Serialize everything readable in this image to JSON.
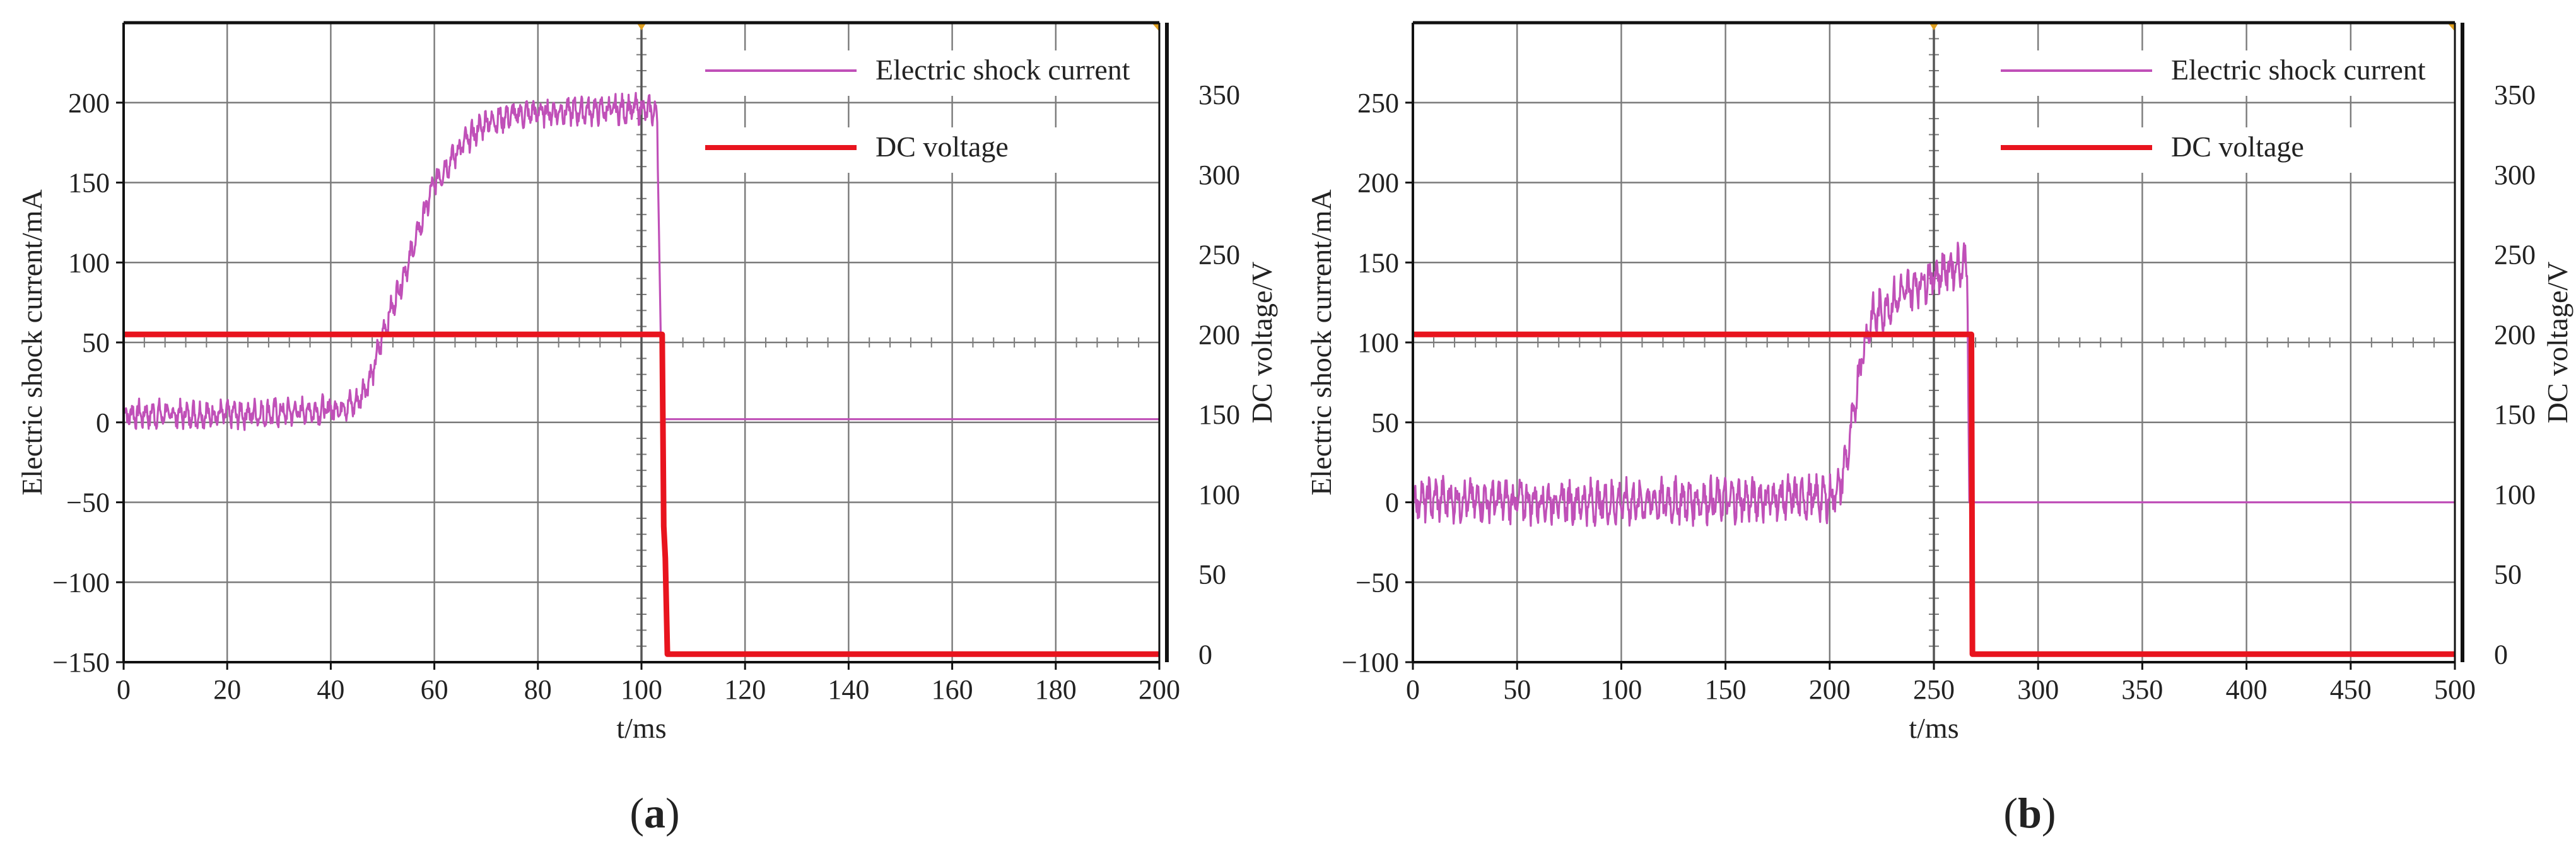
{
  "figure": {
    "panels": [
      "(a)",
      "(b)"
    ]
  },
  "chart_data": [
    {
      "id": "a",
      "panel_label": "a",
      "type": "line",
      "title": "",
      "xlabel": "t/ms",
      "ylabel_left": "Electric shock current/mA",
      "ylabel_right": "DC voltage/V",
      "xlim": [
        0,
        200
      ],
      "ylim_left": [
        -150,
        250
      ],
      "ylim_right": [
        -5,
        395
      ],
      "xticks": [
        0,
        20,
        40,
        60,
        80,
        100,
        120,
        140,
        160,
        180,
        200
      ],
      "yticks_left": [
        -150,
        -100,
        -50,
        0,
        50,
        100,
        150,
        200
      ],
      "yticks_right": [
        0,
        50,
        100,
        150,
        200,
        250,
        300,
        350
      ],
      "grid": true,
      "legend": {
        "position": "top-right",
        "entries": [
          "Electric shock current",
          "DC voltage"
        ]
      },
      "cursor_x": 100,
      "series": [
        {
          "name": "Electric shock current",
          "axis": "left",
          "color": "#c050b8",
          "x": [
            0,
            10,
            20,
            30,
            40,
            45,
            48,
            50,
            55,
            60,
            65,
            70,
            75,
            80,
            90,
            100,
            103,
            104,
            200
          ],
          "y": [
            5,
            5,
            5,
            6,
            8,
            12,
            30,
            55,
            100,
            150,
            172,
            188,
            192,
            194,
            195,
            196,
            194,
            2,
            2
          ],
          "noise": 9
        },
        {
          "name": "DC voltage",
          "axis": "right",
          "color": "#e8141e",
          "x": [
            0,
            104,
            104.3,
            104.6,
            105,
            200
          ],
          "y": [
            200,
            200,
            80,
            60,
            0,
            0
          ]
        }
      ]
    },
    {
      "id": "b",
      "panel_label": "b",
      "type": "line",
      "title": "",
      "xlabel": "t/ms",
      "ylabel_left": "Electric shock current/mA",
      "ylabel_right": "DC voltage/V",
      "xlim": [
        0,
        500
      ],
      "ylim_left": [
        -100,
        300
      ],
      "ylim_right": [
        -5,
        395
      ],
      "xticks": [
        0,
        50,
        100,
        150,
        200,
        250,
        300,
        350,
        400,
        450,
        500
      ],
      "yticks_left": [
        -100,
        -50,
        0,
        50,
        100,
        150,
        200,
        250
      ],
      "yticks_right": [
        0,
        50,
        100,
        150,
        200,
        250,
        300,
        350
      ],
      "grid": true,
      "legend": {
        "position": "top-right",
        "entries": [
          "Electric shock current",
          "DC voltage"
        ]
      },
      "cursor_x": 250,
      "series": [
        {
          "name": "Electric shock current",
          "axis": "left",
          "color": "#c050b8",
          "x": [
            0,
            100,
            200,
            205,
            210,
            215,
            220,
            230,
            240,
            250,
            260,
            266,
            267,
            500
          ],
          "y": [
            2,
            0,
            3,
            10,
            40,
            90,
            115,
            125,
            135,
            142,
            148,
            150,
            0,
            0
          ],
          "noise": 14
        },
        {
          "name": "DC voltage",
          "axis": "right",
          "color": "#e8141e",
          "x": [
            0,
            268,
            268.5,
            500
          ],
          "y": [
            200,
            200,
            0,
            0
          ]
        }
      ]
    }
  ]
}
